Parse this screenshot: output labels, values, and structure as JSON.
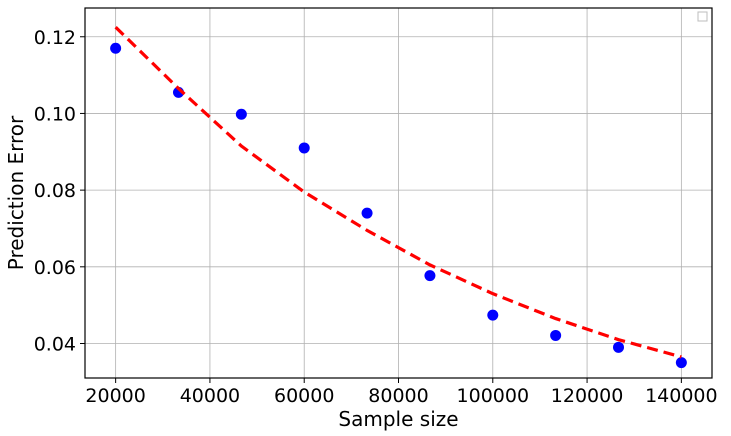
{
  "chart_data": {
    "type": "scatter",
    "title": "",
    "xlabel": "Sample size",
    "ylabel": "Prediction Error",
    "xlim": [
      13500,
      146500
    ],
    "ylim": [
      0.031,
      0.1275
    ],
    "xticks": [
      20000,
      40000,
      60000,
      80000,
      100000,
      120000,
      140000
    ],
    "xtick_labels": [
      "20000",
      "40000",
      "60000",
      "80000",
      "100000",
      "120000",
      "140000"
    ],
    "yticks": [
      0.04,
      0.06,
      0.08,
      0.1,
      0.12
    ],
    "ytick_labels": [
      "0.04",
      "0.06",
      "0.08",
      "0.10",
      "0.12"
    ],
    "grid": true,
    "legend": {
      "placement": "top-right",
      "entries": []
    },
    "series": [
      {
        "kind": "scatter",
        "color": "#0000ff",
        "x": [
          20000,
          33333,
          46667,
          60000,
          73333,
          86667,
          100000,
          113333,
          126667,
          140000
        ],
        "y": [
          0.117,
          0.1055,
          0.0998,
          0.091,
          0.074,
          0.0577,
          0.0474,
          0.0421,
          0.039,
          0.035
        ]
      },
      {
        "kind": "line",
        "style": "dashed",
        "color": "#ff0000",
        "x": [
          20000,
          33333,
          46667,
          60000,
          73333,
          86667,
          100000,
          113333,
          126667,
          140000
        ],
        "y": [
          0.1225,
          0.1065,
          0.0915,
          0.0795,
          0.0695,
          0.0605,
          0.053,
          0.0465,
          0.041,
          0.0365
        ]
      }
    ]
  }
}
